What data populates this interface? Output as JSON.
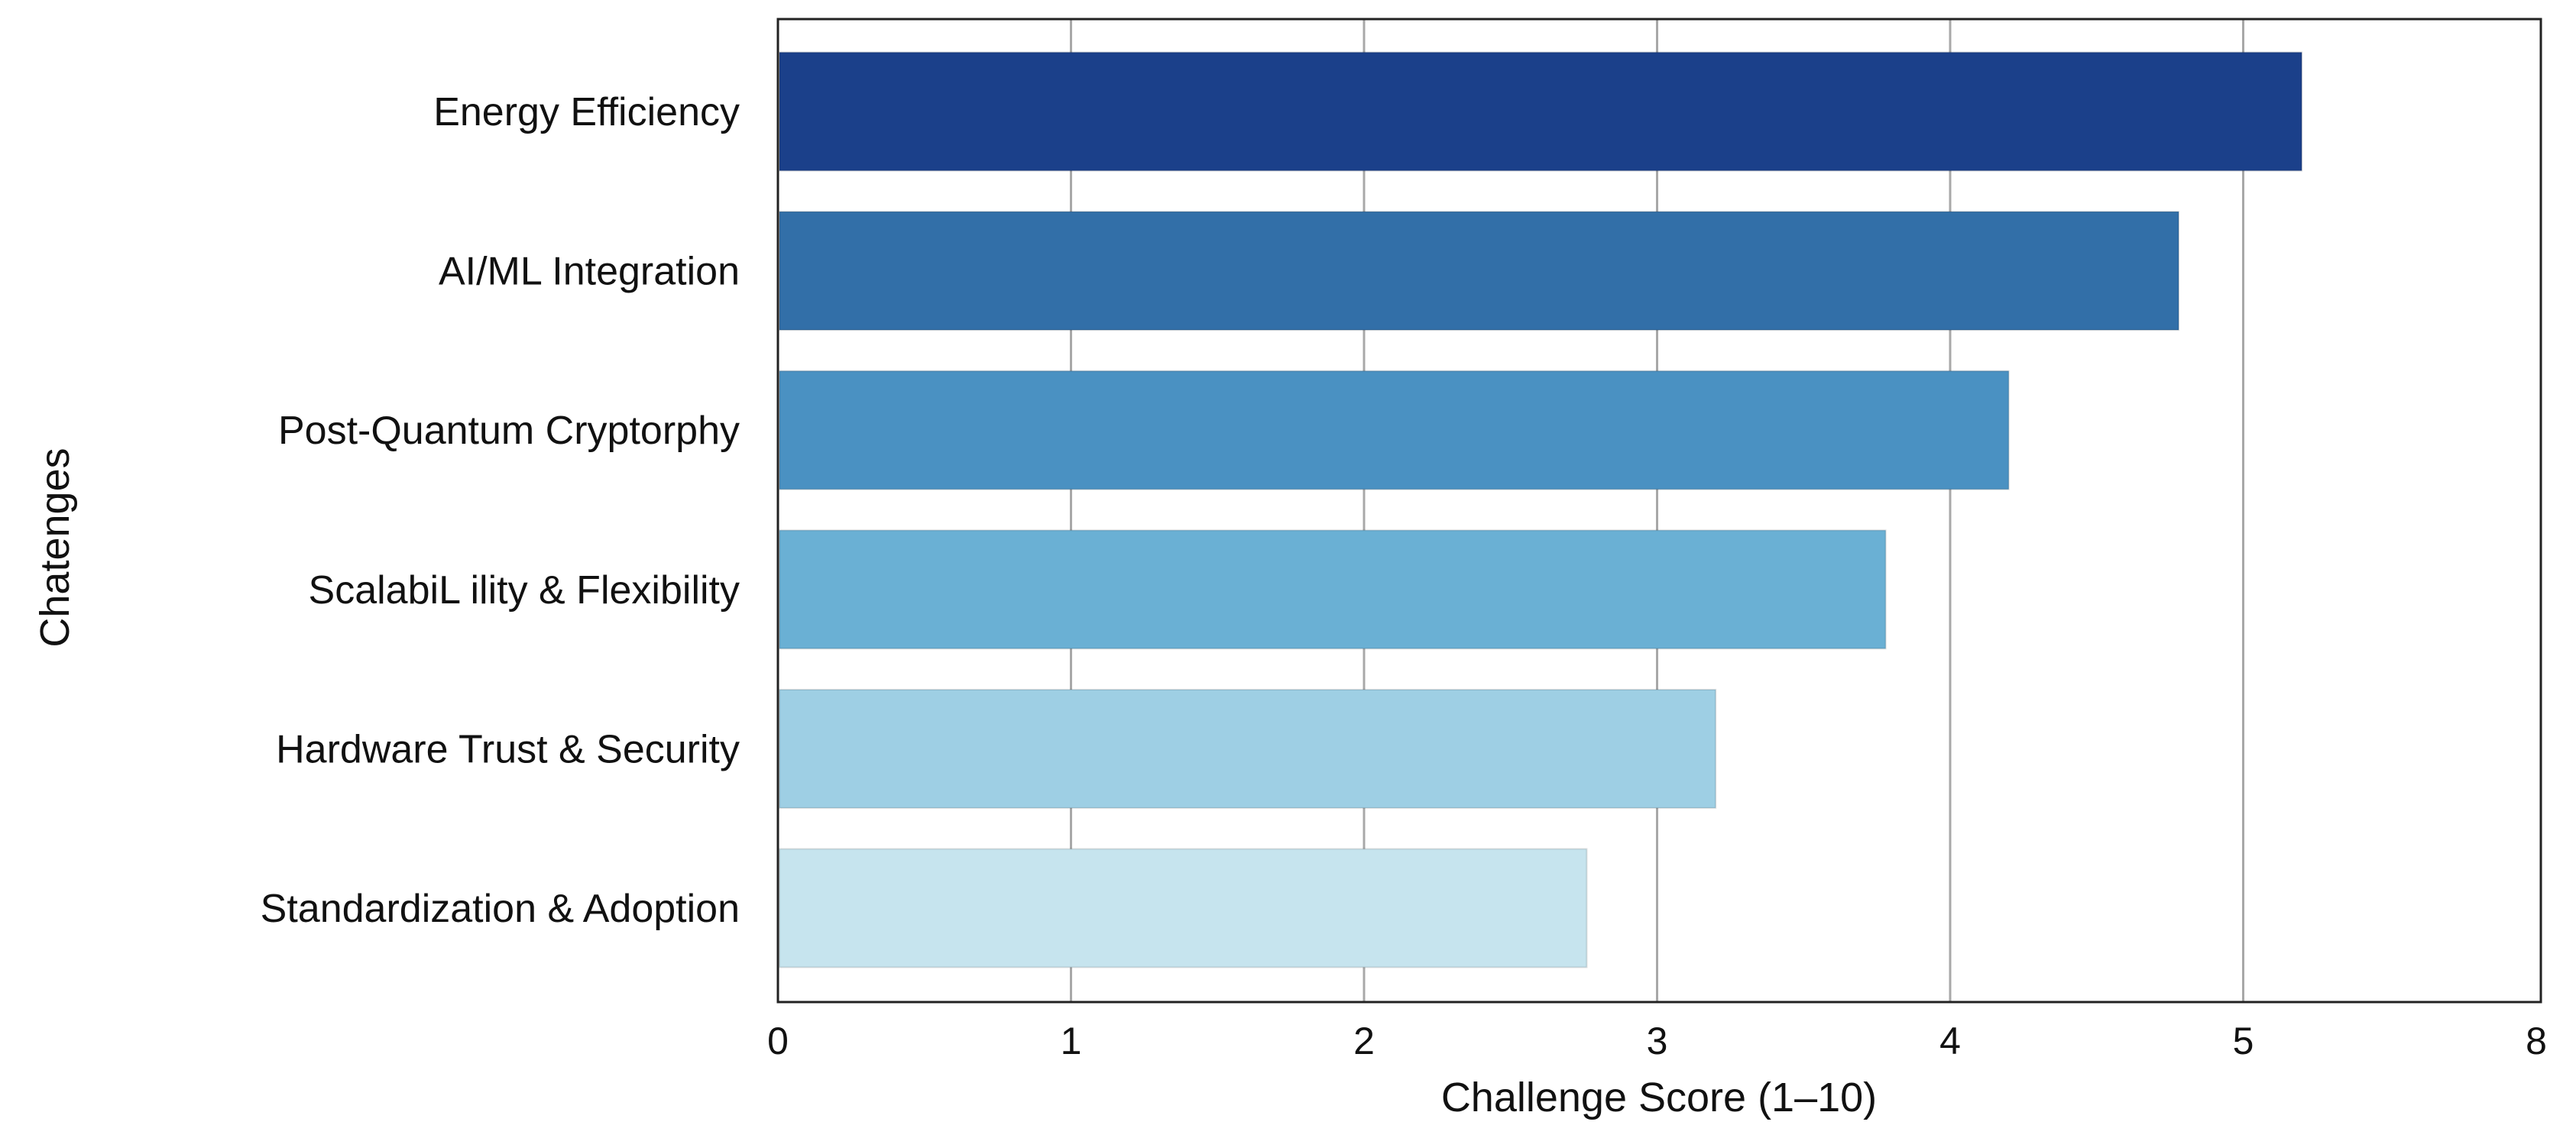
{
  "chart_data": {
    "type": "bar",
    "orientation": "horizontal",
    "categories": [
      "Energy Efficiency",
      "AI/ML Integration",
      "Post-Quantum Cryptorphy",
      "ScalabiL ility & Flexibility",
      "Hardware Trust & Security",
      "Standardization & Adoption"
    ],
    "values": [
      5.2,
      4.78,
      4.2,
      3.78,
      3.2,
      2.76
    ],
    "colors": [
      "#1b408a",
      "#326fa8",
      "#4a91c2",
      "#6ab0d4",
      "#9ecfe4",
      "#c6e4ee"
    ],
    "title": "",
    "xlabel": "Challenge Score (1–10)",
    "ylabel": "Chatenges",
    "xlim": [
      0,
      6
    ],
    "xticks": [
      "0",
      "1",
      "2",
      "3",
      "4",
      "5",
      "8"
    ],
    "grid": "vertical"
  }
}
